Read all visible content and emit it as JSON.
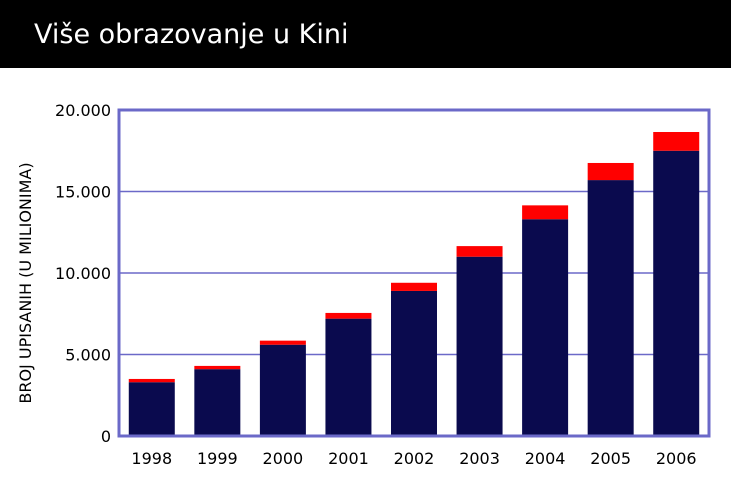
{
  "header": {
    "title": "Više obrazovanje u Kini"
  },
  "chart_data": {
    "type": "bar",
    "stacked": true,
    "title": "Više obrazovanje u Kini",
    "xlabel": "",
    "ylabel": "BROJ UPISANIH (U MILIONIMA)",
    "ylim": [
      0,
      20000
    ],
    "yticks": [
      0,
      5000,
      10000,
      15000,
      20000
    ],
    "ytick_labels": [
      "0",
      "5.000",
      "10.000",
      "15.000",
      "20.000"
    ],
    "grid": true,
    "legend": "none",
    "categories": [
      "1998",
      "1999",
      "2000",
      "2001",
      "2002",
      "2003",
      "2004",
      "2005",
      "2006"
    ],
    "series": [
      {
        "values": [
          3300,
          4100,
          5600,
          7200,
          8900,
          11000,
          13300,
          15700,
          17500
        ],
        "color": "#0a0a4e"
      },
      {
        "values": [
          200,
          200,
          250,
          350,
          500,
          650,
          850,
          1050,
          1150
        ],
        "color": "#ff0000"
      }
    ],
    "colors": {
      "frame": "#6b69c8",
      "grid": "#6b69c8"
    }
  }
}
